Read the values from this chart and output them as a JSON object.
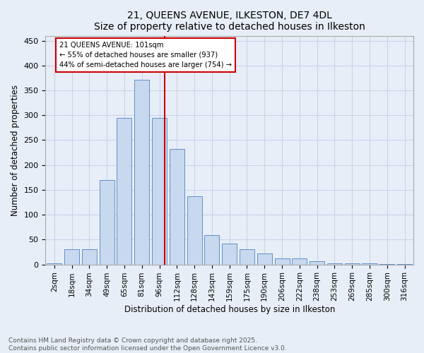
{
  "title": "21, QUEENS AVENUE, ILKESTON, DE7 4DL",
  "subtitle": "Size of property relative to detached houses in Ilkeston",
  "xlabel": "Distribution of detached houses by size in Ilkeston",
  "ylabel": "Number of detached properties",
  "footnote1": "Contains HM Land Registry data © Crown copyright and database right 2025.",
  "footnote2": "Contains public sector information licensed under the Open Government Licence v3.0.",
  "categories": [
    "2sqm",
    "18sqm",
    "34sqm",
    "49sqm",
    "65sqm",
    "81sqm",
    "96sqm",
    "112sqm",
    "128sqm",
    "143sqm",
    "159sqm",
    "175sqm",
    "190sqm",
    "206sqm",
    "222sqm",
    "238sqm",
    "253sqm",
    "269sqm",
    "285sqm",
    "300sqm",
    "316sqm"
  ],
  "values": [
    2,
    30,
    30,
    170,
    295,
    372,
    295,
    232,
    137,
    59,
    42,
    31,
    22,
    12,
    12,
    6,
    2,
    2,
    2,
    1,
    1
  ],
  "bar_color": "#c8d8ee",
  "bar_edge_color": "#6090c8",
  "grid_color": "#c8d4e8",
  "bg_color": "#e8eef8",
  "property_label": "21 QUEENS AVENUE: 101sqm",
  "annotation_line1": "← 55% of detached houses are smaller (937)",
  "annotation_line2": "44% of semi-detached houses are larger (754) →",
  "annotation_box_color": "#ffffff",
  "annotation_border_color": "#cc0000",
  "vline_color": "#cc0000",
  "ylim": [
    0,
    460
  ],
  "yticks": [
    0,
    50,
    100,
    150,
    200,
    250,
    300,
    350,
    400,
    450
  ],
  "title_fontsize": 10,
  "label_fontsize": 8.5,
  "tick_fontsize": 7.5,
  "footnote_fontsize": 6.5
}
